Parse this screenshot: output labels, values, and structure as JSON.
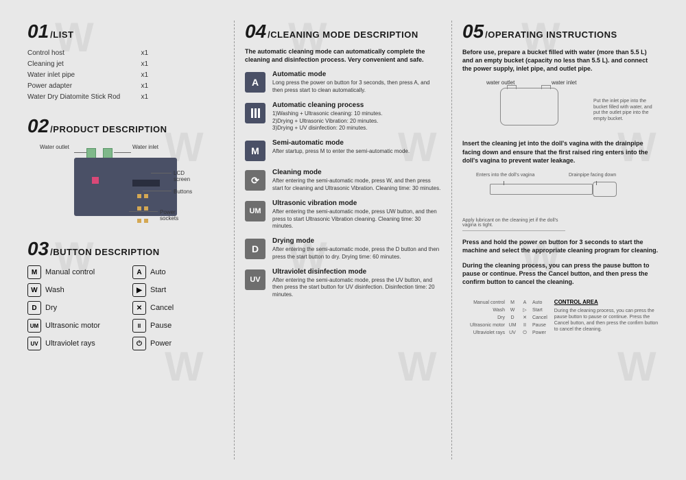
{
  "sections": {
    "s01": {
      "num": "01",
      "label": "/LIST"
    },
    "s02": {
      "num": "02",
      "label": "/PRODUCT DESCRIPTION"
    },
    "s03": {
      "num": "03",
      "label": "/BUTTON DESCRIPTION"
    },
    "s04": {
      "num": "04",
      "label": "/CLEANING MODE DESCRIPTION"
    },
    "s05": {
      "num": "05",
      "label": "/OPERATING INSTRUCTIONS"
    }
  },
  "list": [
    {
      "name": "Control host",
      "qty": "x1"
    },
    {
      "name": "Cleaning jet",
      "qty": "x1"
    },
    {
      "name": "Water inlet pipe",
      "qty": "x1"
    },
    {
      "name": "Power adapter",
      "qty": "x1"
    },
    {
      "name": "Water Dry Diatomite Stick Rod",
      "qty": "x1"
    }
  ],
  "device_labels": {
    "water_outlet": "Water outlet",
    "water_inlet": "Water inlet",
    "lcd": "LCD screen",
    "buttons": "Buttons",
    "power_sockets": "Power sockets"
  },
  "buttons": [
    {
      "icon": "M",
      "label": "Manual control"
    },
    {
      "icon": "A",
      "label": "Auto"
    },
    {
      "icon": "W",
      "label": "Wash"
    },
    {
      "icon": "▶",
      "label": "Start"
    },
    {
      "icon": "D",
      "label": "Dry"
    },
    {
      "icon": "✕",
      "label": "Cancel"
    },
    {
      "icon": "UM",
      "label": "Ultrasonic motor"
    },
    {
      "icon": "II",
      "label": "Pause"
    },
    {
      "icon": "UV",
      "label": "Ultraviolet rays"
    },
    {
      "icon": "⏻",
      "label": "Power"
    }
  ],
  "cleaning_intro": "The automatic cleaning mode can automatically complete the cleaning and disinfection process. Very convenient and safe.",
  "modes": [
    {
      "icon": "A",
      "cls": "",
      "title": "Automatic mode",
      "desc": "Long press the power on button for 3 seconds, then press A, and then press start to clean automatically."
    },
    {
      "icon": "|||",
      "cls": "",
      "title": "Automatic cleaning process",
      "desc": "1)Washing + Ultrasonic cleaning: 10 minutes.\n2)Drying + Ultrasonic Vibration: 20 minutes.\n3)Drying + UV disinfection: 20 minutes."
    },
    {
      "icon": "M",
      "cls": "",
      "title": "Semi-automatic mode",
      "desc": "After startup, press M to enter the semi-automatic mode."
    },
    {
      "icon": "⟳",
      "cls": "gray",
      "title": "Cleaning mode",
      "desc": "After entering the semi-automatic mode, press W, and then press start for cleaning and Ultrasonic Vibration. Cleaning time: 30 minutes."
    },
    {
      "icon": "UM",
      "cls": "gray",
      "title": "Ultrasonic vibration mode",
      "desc": "After entering the semi-automatic mode, press UW button, and then press to start Ultrasonic Vibration cleaning. Cleaning time: 30 minutes."
    },
    {
      "icon": "D",
      "cls": "gray",
      "title": "Drying mode",
      "desc": "After entering the semi-automatic mode, press the D button and then press the start button to dry. Drying time: 60 minutes."
    },
    {
      "icon": "UV",
      "cls": "gray",
      "title": "Ultraviolet disinfection mode",
      "desc": "After entering the semi-automatic mode, press the UV button, and then press the start button for UV disinfection. Disinfection time: 20 minutes."
    }
  ],
  "operating": {
    "intro": "Before use, prepare a bucket filled with water (more than 5.5 L) and an empty bucket (capacity no less than 5.5 L). and connect the power supply, inlet pipe, and outlet pipe.",
    "bucket": {
      "water_outlet": "water outlet",
      "water_inlet": "water inlet",
      "note": "Put the inlet pipe into the bucket filled with water, and put the outlet pipe into the empty bucket."
    },
    "insert": "Insert the cleaning jet into the doll's vagina with the drainpipe facing down and ensure that the first raised ring enters into the doll's vagina to prevent water leakage.",
    "jet": {
      "enters": "Enters into the doll's vagina",
      "drainpipe": "Drainpipe facing down",
      "lubricant": "Apply lubricant on the cleaning jet if the doll's vagina is tight."
    },
    "press": "Press and hold the power on button for 3 seconds to start the machine and select the appropriate cleaning program for cleaning.",
    "during": "During the cleaning process, you can press the pause button to pause or continue. Press the Cancel button, and then press the confirm button to cancel the cleaning.",
    "control_area": {
      "title": "CONTROL AREA",
      "desc": "During the cleaning process, you can press the pause button to pause or continue. Press the Cancel button, and then press the confirm button to cancel the cleaning.",
      "rows": [
        [
          "Manual control",
          "M",
          "A",
          "Auto"
        ],
        [
          "Wash",
          "W",
          "▷",
          "Start"
        ],
        [
          "Dry",
          "D",
          "✕",
          "Cancel"
        ],
        [
          "Ultrasonic motor",
          "UM",
          "II",
          "Pause"
        ],
        [
          "Ultraviolet rays",
          "UV",
          "⏻",
          "Power"
        ]
      ]
    }
  },
  "colors": {
    "bg": "#e8e8e8",
    "text_dark": "#1a1a1a",
    "text_body": "#333333",
    "icon_blue": "#4a5066",
    "icon_gray": "#6e6e6e",
    "device_body": "#4a5066",
    "port_green": "#7fb88a"
  }
}
